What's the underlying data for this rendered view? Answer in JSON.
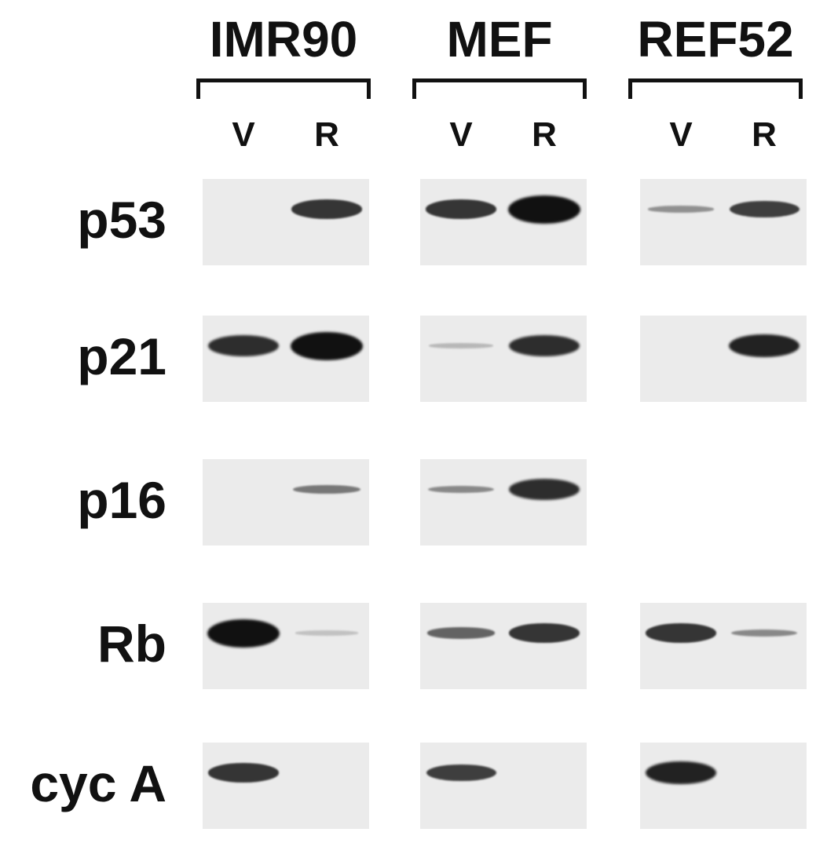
{
  "cell_lines": [
    {
      "name": "IMR90",
      "lanes": [
        "V",
        "R"
      ]
    },
    {
      "name": "MEF",
      "lanes": [
        "V",
        "R"
      ]
    },
    {
      "name": "REF52",
      "lanes": [
        "V",
        "R"
      ]
    }
  ],
  "proteins": [
    "p53",
    "p21",
    "p16",
    "Rb",
    "cyc A"
  ],
  "band_intensity": {
    "p53": {
      "IMR90": [
        0.0,
        0.8
      ],
      "MEF": [
        0.8,
        1.0
      ],
      "REF52": [
        0.3,
        0.75
      ]
    },
    "p21": {
      "IMR90": [
        0.85,
        1.0
      ],
      "MEF": [
        0.1,
        0.85
      ],
      "REF52": [
        0.0,
        0.9
      ]
    },
    "p16": {
      "IMR90": [
        0.0,
        0.45
      ],
      "MEF": [
        0.35,
        0.85
      ],
      "REF52": null
    },
    "Rb": {
      "IMR90": [
        1.0,
        0.05
      ],
      "MEF": [
        0.55,
        0.8
      ],
      "REF52": [
        0.8,
        0.35
      ]
    },
    "cyc A": {
      "IMR90": [
        0.8,
        0.0
      ],
      "MEF": [
        0.75,
        0.0
      ],
      "REF52": [
        0.9,
        0.0
      ]
    }
  },
  "colors": {
    "band": "#111111",
    "panel": "#ebebeb",
    "text": "#111111"
  }
}
